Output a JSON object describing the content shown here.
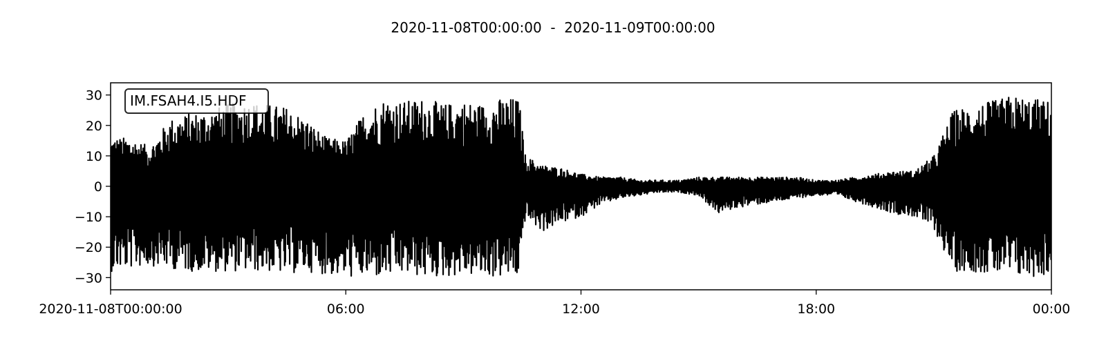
{
  "chart_data": {
    "type": "line",
    "title": "2020-11-08T00:00:00  -  2020-11-09T00:00:00",
    "series_label": "IM.FSAH4.I5.HDF",
    "xlim": [
      "2020-11-08T00:00:00",
      "2020-11-09T00:00:00"
    ],
    "ylim": [
      -34,
      34
    ],
    "x_ticks": [
      {
        "value": "2020-11-08T00:00:00",
        "label": "2020-11-08T00:00:00"
      },
      {
        "value": "2020-11-08T06:00:00",
        "label": "06:00"
      },
      {
        "value": "2020-11-08T12:00:00",
        "label": "12:00"
      },
      {
        "value": "2020-11-08T18:00:00",
        "label": "18:00"
      },
      {
        "value": "2020-11-09T00:00:00",
        "label": "00:00"
      }
    ],
    "y_ticks": [
      {
        "value": 30,
        "label": "30"
      },
      {
        "value": 20,
        "label": "20"
      },
      {
        "value": 10,
        "label": "10"
      },
      {
        "value": 0,
        "label": "0"
      },
      {
        "value": -10,
        "label": "−10"
      },
      {
        "value": -20,
        "label": "−20"
      },
      {
        "value": -30,
        "label": "−30"
      }
    ],
    "envelope": {
      "x": [
        "00:00",
        "00:30",
        "01:00",
        "01:30",
        "02:00",
        "02:30",
        "03:00",
        "03:30",
        "04:00",
        "04:30",
        "05:00",
        "05:30",
        "06:00",
        "06:30",
        "07:00",
        "07:30",
        "08:00",
        "08:30",
        "09:00",
        "09:30",
        "10:00",
        "10:25",
        "10:35",
        "11:00",
        "11:30",
        "12:00",
        "12:30",
        "13:00",
        "13:30",
        "14:00",
        "14:30",
        "15:00",
        "15:30",
        "16:00",
        "16:30",
        "17:00",
        "17:30",
        "18:00",
        "18:30",
        "19:00",
        "19:30",
        "20:00",
        "20:30",
        "21:00",
        "21:30",
        "22:00",
        "22:30",
        "23:00",
        "23:30",
        "24:00"
      ],
      "max": [
        16,
        16,
        13,
        22,
        24,
        25,
        27,
        28,
        27,
        26,
        22,
        16,
        15,
        25,
        29,
        28,
        29,
        27,
        28,
        27,
        29,
        29,
        10,
        7,
        6,
        4,
        3,
        3,
        2,
        2,
        2,
        3,
        3,
        3,
        3,
        3,
        3,
        2,
        2,
        3,
        4,
        5,
        5,
        10,
        25,
        27,
        28,
        30,
        29,
        28
      ],
      "min": [
        -28,
        -27,
        -26,
        -27,
        -28,
        -28,
        -28,
        -28,
        -28,
        -29,
        -28,
        -29,
        -30,
        -30,
        -30,
        -29,
        -30,
        -30,
        -29,
        -30,
        -30,
        -30,
        -10,
        -15,
        -12,
        -10,
        -6,
        -4,
        -3,
        -2,
        -2,
        -3,
        -9,
        -7,
        -6,
        -5,
        -4,
        -3,
        -3,
        -5,
        -7,
        -9,
        -10,
        -14,
        -28,
        -28,
        -29,
        -30,
        -30,
        -29
      ]
    }
  }
}
